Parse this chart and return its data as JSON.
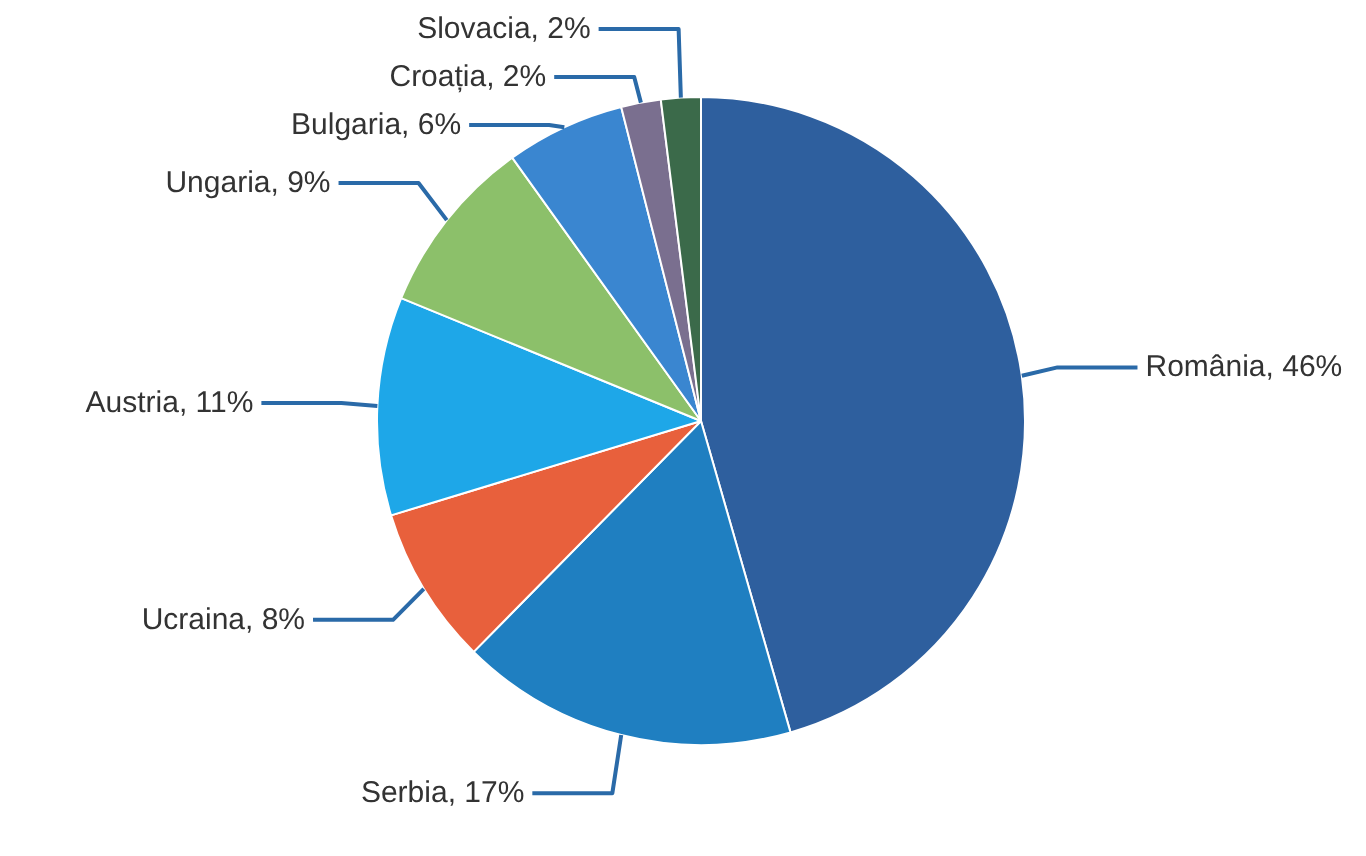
{
  "chart_data": {
    "type": "pie",
    "categories": [
      "România",
      "Serbia",
      "Ucraina",
      "Austria",
      "Ungaria",
      "Bulgaria",
      "Croația",
      "Slovacia"
    ],
    "values": [
      46,
      17,
      8,
      11,
      9,
      6,
      2,
      2
    ],
    "value_labels": [
      "46%",
      "17%",
      "8%",
      "11%",
      "9%",
      "6%",
      "2%",
      "2%"
    ],
    "colors": [
      "#2e5f9e",
      "#1f7fc1",
      "#e8603c",
      "#1ea7e8",
      "#8cc06a",
      "#3a86d0",
      "#7a6f8f",
      "#3b6a4a"
    ]
  }
}
